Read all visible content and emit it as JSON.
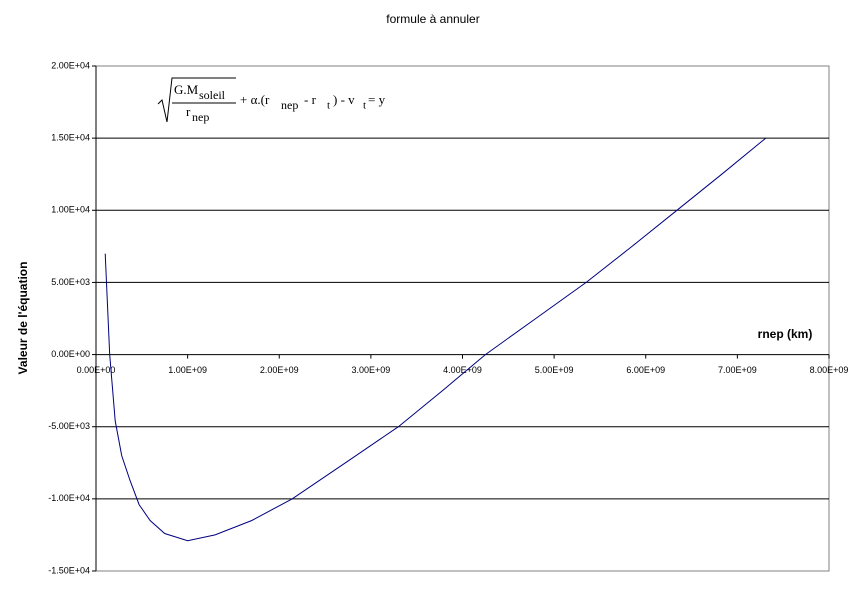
{
  "chart_data": {
    "type": "line",
    "title": "formule à annuler",
    "x_label": "rnep (km)",
    "y_label": "Valeur de l'équation",
    "annotation": [
      "G.M",
      "soleil",
      "r",
      "nep",
      "+ α.(r",
      "nep",
      " - r",
      "t",
      ") - v",
      "t",
      " =  y"
    ],
    "x": [
      100000000,
      150000000,
      210000000,
      280000000,
      370000000,
      470000000,
      590000000,
      750000000,
      1000000000,
      1300000000,
      1700000000,
      2140000000,
      2700000000,
      3300000000,
      3800000000,
      4250000000,
      4800000000,
      5350000000,
      5850000000,
      6340000000,
      6830000000,
      7310000000
    ],
    "series": [
      {
        "color": "#00007f",
        "values": [
          7000,
          0,
          -4600,
          -7000,
          -8700,
          -10400,
          -11500,
          -12400,
          -12900,
          -12500,
          -11500,
          -10000,
          -7600,
          -5000,
          -2400,
          0,
          2500,
          5000,
          7500,
          10000,
          12500,
          15000
        ]
      }
    ],
    "xlim": [
      0,
      8000000000
    ],
    "xticks": [
      {
        "value": 0,
        "label": "0.00E+00"
      },
      {
        "value": 1000000000,
        "label": "1.00E+09"
      },
      {
        "value": 2000000000,
        "label": "2.00E+09"
      },
      {
        "value": 3000000000,
        "label": "3.00E+09"
      },
      {
        "value": 4000000000,
        "label": "4.00E+09"
      },
      {
        "value": 5000000000,
        "label": "5.00E+09"
      },
      {
        "value": 6000000000,
        "label": "6.00E+09"
      },
      {
        "value": 7000000000,
        "label": "7.00E+09"
      },
      {
        "value": 8000000000,
        "label": "8.00E+09"
      }
    ],
    "ylim": [
      -15000,
      20000
    ],
    "yticks": [
      {
        "value": 20000,
        "label": "2.00E+04"
      },
      {
        "value": 15000,
        "label": "1.50E+04"
      },
      {
        "value": 10000,
        "label": "1.00E+04"
      },
      {
        "value": 5000,
        "label": "5.00E+03"
      },
      {
        "value": 0,
        "label": "0.00E+00"
      },
      {
        "value": -5000,
        "label": "-5.00E+03"
      },
      {
        "value": -10000,
        "label": "-1.00E+04"
      },
      {
        "value": -15000,
        "label": "-1.50E+04"
      }
    ],
    "grid": true
  }
}
